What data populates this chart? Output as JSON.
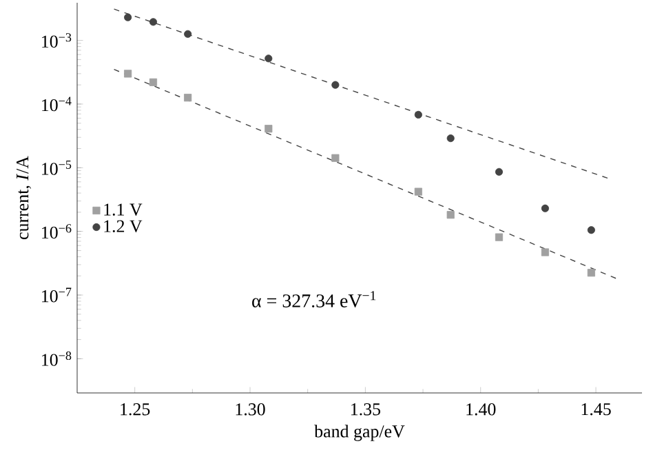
{
  "chart_data": {
    "type": "scatter",
    "xlabel": "band gap/eV",
    "ylabel": "current, *I*/A",
    "log": "y",
    "xlim": [
      1.225,
      1.47
    ],
    "xticks": [
      1.25,
      {
        "value": 1.3,
        "label": "1.30"
      },
      1.35,
      {
        "value": 1.4,
        "label": "1.40"
      },
      1.45
    ],
    "ylim": [
      2.9e-09,
      0.0039
    ],
    "yticks": [
      {
        "value": 1e-08,
        "label": "10$^{−8}$"
      },
      {
        "value": 1e-07,
        "label": "10$^{−7}$"
      },
      {
        "value": 1e-06,
        "label": "10$^{−6}$"
      },
      {
        "value": 1e-05,
        "label": "10$^{−5}$"
      },
      {
        "value": 0.0001,
        "label": "10$^{−4}$"
      },
      {
        "value": 0.001,
        "label": "10$^{−3}$"
      }
    ],
    "x": [
      1.247,
      1.258,
      1.273,
      1.308,
      1.337,
      1.373,
      1.387,
      1.408,
      1.428,
      1.448
    ],
    "series": [
      {
        "name": "1.1 V",
        "color": "#a0a0a0",
        "marker": "square",
        "values": [
          0.0003,
          0.00022,
          0.000126,
          4.1e-05,
          1.42e-05,
          4.2e-06,
          1.82e-06,
          8.1e-07,
          4.7e-07,
          2.24e-07
        ]
      },
      {
        "name": "1.2 V",
        "color": "#444444",
        "marker": "circle",
        "values": [
          0.0023,
          0.00195,
          0.00126,
          0.00052,
          0.0002,
          6.8e-05,
          2.9e-05,
          8.6e-06,
          2.3e-06,
          1.05e-06
        ]
      },
      {
        "type": "line",
        "color": "#444444",
        "line_style": "dashed",
        "marker": "none",
        "x": [
          1.241,
          1.4565
        ],
        "values": [
          0.0031,
          6.6e-06
        ]
      },
      {
        "type": "line",
        "color": "#444444",
        "line_style": "dashed",
        "marker": "none",
        "x": [
          1.241,
          1.4598
        ],
        "values": [
          0.00035,
          1.76e-07
        ]
      }
    ],
    "legend": "left",
    "grid": false,
    "annotations": [
      "α = 327.34 eV$^{−1}$"
    ]
  }
}
